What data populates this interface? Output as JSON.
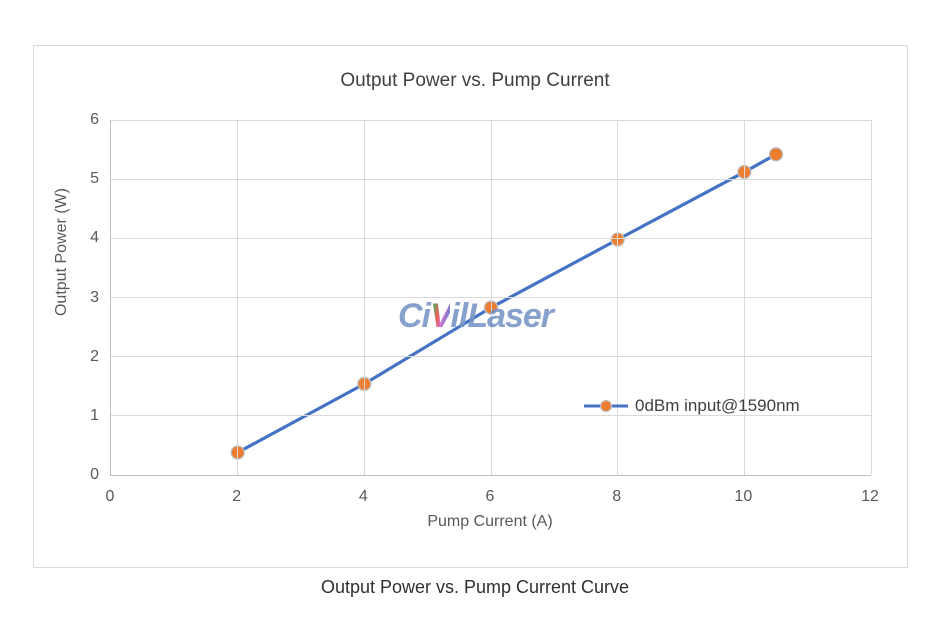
{
  "chart_data": {
    "type": "line",
    "title": "Output Power vs. Pump Current",
    "xlabel": "Pump Current (A)",
    "ylabel": "Output Power (W)",
    "xlim": [
      0,
      12
    ],
    "ylim": [
      0,
      6
    ],
    "x_ticks": [
      0,
      2,
      4,
      6,
      8,
      10,
      12
    ],
    "y_ticks": [
      0,
      1,
      2,
      3,
      4,
      5,
      6
    ],
    "grid": true,
    "legend_position": "inside-right",
    "series": [
      {
        "name": "0dBm input@1590nm",
        "x": [
          2,
          4,
          6,
          8,
          10,
          10.5
        ],
        "values": [
          0.38,
          1.54,
          2.83,
          3.98,
          5.12,
          5.42
        ],
        "line_color": "#4472C4",
        "marker_color": "#ED7D31",
        "marker_stroke": "#BFBFBF"
      }
    ],
    "colors": {
      "gridline": "#D9D9D9",
      "axis_line": "#BFBFBF",
      "tick_text": "#595959",
      "title_text": "#404040"
    }
  },
  "watermark": {
    "part1": "Ci",
    "part2": "V",
    "part3": "ilLaser",
    "color": "#7695C5"
  },
  "caption": "Output Power vs. Pump Current Curve"
}
